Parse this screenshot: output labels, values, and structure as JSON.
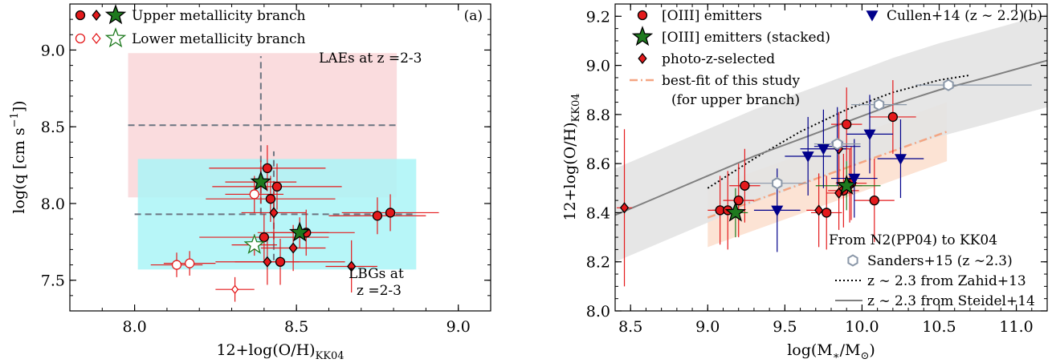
{
  "chart_data": [
    {
      "type": "scatter",
      "panel_label": "(a)",
      "xlabel": "12+log(O/H)",
      "xlabel_sub": "KK04",
      "ylabel": "log(q [cm s",
      "ylabel_sup": "−1",
      "ylabel_end": "])",
      "xlim": [
        7.8,
        9.1
      ],
      "ylim": [
        7.3,
        9.3
      ],
      "xticks": [
        "8.0",
        "8.5",
        "9.0"
      ],
      "yticks": [
        "7.5",
        "8.0",
        "8.5",
        "9.0"
      ],
      "legend": {
        "placement": "top-left",
        "entries": [
          "Upper metallicity branch",
          "Lower metallicity branch"
        ]
      },
      "regions": [
        {
          "name": "LAEs",
          "label": "LAEs at z =2-3",
          "color": "#f9d6d8",
          "x": [
            7.98,
            8.81
          ],
          "y": [
            8.04,
            8.98
          ],
          "cross": {
            "x": 8.39,
            "y": 8.51,
            "xerr": [
              7.98,
              8.81
            ],
            "yerr": [
              7.93,
              8.96
            ]
          }
        },
        {
          "name": "LBGs",
          "label_line1": "LBGs at",
          "label_line2": "z =2-3",
          "color": "#aaf4f7",
          "x": [
            8.01,
            8.87
          ],
          "y": [
            7.57,
            8.29
          ],
          "cross": {
            "x": 8.43,
            "y": 7.93,
            "xerr": [
              8.0,
              8.87
            ],
            "yerr": [
              7.63,
              8.34
            ]
          }
        }
      ],
      "series": [
        {
          "marker": "circle",
          "filled": true,
          "points": [
            {
              "x": 8.41,
              "y": 8.23,
              "xerr": [
                8.23,
                8.59
              ],
              "yerr": [
                8.08,
                8.38
              ]
            },
            {
              "x": 8.42,
              "y": 8.03,
              "xerr": [
                8.22,
                8.62
              ],
              "yerr": [
                7.88,
                8.18
              ]
            },
            {
              "x": 8.44,
              "y": 8.11,
              "xerr": [
                8.24,
                8.64
              ],
              "yerr": [
                7.96,
                8.26
              ]
            },
            {
              "x": 8.4,
              "y": 7.78,
              "xerr": [
                8.2,
                8.6
              ],
              "yerr": [
                7.63,
                7.93
              ]
            },
            {
              "x": 8.45,
              "y": 7.62,
              "xerr": [
                8.25,
                8.65
              ],
              "yerr": [
                7.47,
                7.77
              ]
            },
            {
              "x": 8.53,
              "y": 7.81,
              "xerr": [
                8.38,
                8.68
              ],
              "yerr": [
                7.66,
                7.96
              ]
            },
            {
              "x": 8.75,
              "y": 7.92,
              "xerr": [
                8.6,
                8.9
              ],
              "yerr": [
                7.8,
                8.04
              ]
            },
            {
              "x": 8.79,
              "y": 7.94,
              "xerr": [
                8.64,
                8.94
              ],
              "yerr": [
                7.82,
                8.06
              ]
            }
          ]
        },
        {
          "marker": "diamond",
          "filled": true,
          "points": [
            {
              "x": 8.43,
              "y": 7.94,
              "xerr": [
                8.33,
                8.53
              ],
              "yerr": [
                7.74,
                8.14
              ]
            },
            {
              "x": 8.41,
              "y": 7.62,
              "xerr": [
                8.31,
                8.51
              ],
              "yerr": [
                7.47,
                7.77
              ]
            },
            {
              "x": 8.49,
              "y": 7.71,
              "xerr": [
                8.39,
                8.59
              ],
              "yerr": [
                7.56,
                7.86
              ]
            },
            {
              "x": 8.67,
              "y": 7.59,
              "xerr": [
                8.59,
                8.75
              ],
              "yerr": [
                7.42,
                7.76
              ]
            }
          ]
        },
        {
          "marker": "star",
          "filled": true,
          "points": [
            {
              "x": 8.39,
              "y": 8.14,
              "xerr": [
                8.28,
                8.5
              ],
              "yerr": [
                8.0,
                8.28
              ]
            },
            {
              "x": 8.51,
              "y": 7.81,
              "xerr": [
                8.42,
                8.6
              ],
              "yerr": [
                7.71,
                7.91
              ]
            }
          ]
        },
        {
          "marker": "circle",
          "filled": false,
          "points": [
            {
              "x": 8.37,
              "y": 8.06,
              "xerr": [
                8.28,
                8.46
              ],
              "yerr": [
                7.94,
                8.18
              ]
            },
            {
              "x": 8.13,
              "y": 7.6,
              "xerr": [
                8.05,
                8.21
              ],
              "yerr": [
                7.52,
                7.68
              ]
            },
            {
              "x": 8.17,
              "y": 7.61,
              "xerr": [
                8.09,
                8.25
              ],
              "yerr": [
                7.53,
                7.69
              ]
            }
          ]
        },
        {
          "marker": "diamond",
          "filled": false,
          "points": [
            {
              "x": 8.31,
              "y": 7.44,
              "xerr": [
                8.25,
                8.37
              ],
              "yerr": [
                7.36,
                7.52
              ]
            }
          ]
        },
        {
          "marker": "star",
          "filled": false,
          "points": [
            {
              "x": 8.37,
              "y": 7.73,
              "xerr": [
                8.3,
                8.44
              ],
              "yerr": [
                7.66,
                7.8
              ]
            }
          ]
        }
      ]
    },
    {
      "type": "scatter",
      "panel_label": "(b)",
      "xlabel": "log(M",
      "xlabel_sub": "∗",
      "xlabel_mid": "/M",
      "xlabel_sub2": "⊙",
      "xlabel_end": ")",
      "ylabel": "12+log(O/H)",
      "ylabel_sub": "KK04",
      "xlim": [
        8.4,
        11.2
      ],
      "ylim": [
        8.0,
        9.25
      ],
      "xticks": [
        "8.5",
        "9.0",
        "9.5",
        "10.0",
        "10.5",
        "11.0"
      ],
      "yticks": [
        "8.0",
        "8.2",
        "8.4",
        "8.6",
        "8.8",
        "9.0",
        "9.2"
      ],
      "legend": {
        "placement": "top",
        "entries": [
          "[OIII] emitters",
          "[OIII] emitters (stacked)",
          "photo-z-selected",
          "best-fit of this study",
          "(for upper branch)",
          "Cullen+14 (z ∼ 2.2)"
        ]
      },
      "note_title": "From N2(PP04) to KK04",
      "note_entries": [
        "Sanders+15 (z ∼2.3)",
        "z ∼ 2.3 from Zahid+13",
        "z ∼ 2.3 from Steidel+14"
      ],
      "series": [
        {
          "name": "[OIII] emitters",
          "marker": "circle",
          "color": "#e41a1c",
          "points": [
            {
              "x": 9.08,
              "y": 8.41,
              "xerr": [
                9.0,
                9.16
              ],
              "yerr": [
                8.27,
                8.55
              ]
            },
            {
              "x": 9.13,
              "y": 8.41,
              "xerr": [
                9.03,
                9.23
              ],
              "yerr": [
                8.25,
                8.57
              ]
            },
            {
              "x": 9.2,
              "y": 8.45,
              "xerr": [
                9.1,
                9.3
              ],
              "yerr": [
                8.3,
                8.6
              ]
            },
            {
              "x": 9.24,
              "y": 8.51,
              "xerr": [
                9.14,
                9.34
              ],
              "yerr": [
                8.36,
                8.66
              ]
            },
            {
              "x": 9.77,
              "y": 8.4,
              "xerr": [
                9.67,
                9.87
              ],
              "yerr": [
                8.25,
                8.55
              ]
            },
            {
              "x": 9.88,
              "y": 8.49,
              "xerr": [
                9.78,
                9.98
              ],
              "yerr": [
                8.34,
                8.64
              ]
            },
            {
              "x": 9.9,
              "y": 8.76,
              "xerr": [
                9.8,
                10.0
              ],
              "yerr": [
                8.61,
                8.91
              ]
            },
            {
              "x": 9.93,
              "y": 8.52,
              "xerr": [
                9.83,
                10.03
              ],
              "yerr": [
                8.37,
                8.67
              ]
            },
            {
              "x": 10.08,
              "y": 8.45,
              "xerr": [
                9.95,
                10.21
              ],
              "yerr": [
                8.28,
                8.62
              ]
            },
            {
              "x": 10.2,
              "y": 8.79,
              "xerr": [
                10.05,
                10.35
              ],
              "yerr": [
                8.64,
                8.94
              ]
            }
          ]
        },
        {
          "name": "photo-z-selected",
          "marker": "diamond",
          "color": "#e41a1c",
          "points": [
            {
              "x": 8.46,
              "y": 8.42,
              "xerr": [
                8.41,
                8.51
              ],
              "yerr": [
                8.1,
                8.74
              ]
            },
            {
              "x": 9.72,
              "y": 8.41,
              "xerr": [
                9.64,
                9.8
              ],
              "yerr": [
                8.26,
                8.56
              ]
            },
            {
              "x": 9.85,
              "y": 8.48,
              "xerr": [
                9.77,
                9.93
              ],
              "yerr": [
                8.33,
                8.63
              ]
            },
            {
              "x": 9.85,
              "y": 8.66,
              "xerr": [
                9.77,
                9.93
              ],
              "yerr": [
                8.51,
                8.81
              ]
            },
            {
              "x": 9.92,
              "y": 8.51,
              "xerr": [
                9.84,
                10.0
              ],
              "yerr": [
                8.36,
                8.66
              ]
            }
          ]
        },
        {
          "name": "[OIII] emitters (stacked)",
          "marker": "star",
          "color": "#1e7a1e",
          "points": [
            {
              "x": 9.18,
              "y": 8.4,
              "xerr": [
                9.1,
                9.26
              ],
              "yerr": [
                8.3,
                8.5
              ]
            },
            {
              "x": 9.9,
              "y": 8.51,
              "xerr": [
                9.7,
                10.12
              ],
              "yerr": [
                8.41,
                8.61
              ]
            }
          ]
        },
        {
          "name": "Cullen+14 (z ∼ 2.2)",
          "marker": "triangle-down",
          "color": "#00008b",
          "points": [
            {
              "x": 9.45,
              "y": 8.41,
              "xerr": [
                9.3,
                9.6
              ],
              "yerr": [
                8.24,
                8.58
              ]
            },
            {
              "x": 9.65,
              "y": 8.63,
              "xerr": [
                9.5,
                9.8
              ],
              "yerr": [
                8.47,
                8.79
              ]
            },
            {
              "x": 9.75,
              "y": 8.66,
              "xerr": [
                9.6,
                9.9
              ],
              "yerr": [
                8.5,
                8.82
              ]
            },
            {
              "x": 9.84,
              "y": 8.67,
              "xerr": [
                9.69,
                9.99
              ],
              "yerr": [
                8.51,
                8.83
              ]
            },
            {
              "x": 9.95,
              "y": 8.54,
              "xerr": [
                9.8,
                10.1
              ],
              "yerr": [
                8.38,
                8.7
              ]
            },
            {
              "x": 10.05,
              "y": 8.72,
              "xerr": [
                9.9,
                10.2
              ],
              "yerr": [
                8.56,
                8.88
              ]
            },
            {
              "x": 10.25,
              "y": 8.62,
              "xerr": [
                10.1,
                10.4
              ],
              "yerr": [
                8.46,
                8.78
              ]
            }
          ]
        },
        {
          "name": "Sanders+15 (z ∼2.3)",
          "marker": "hexagon-open",
          "color": "#8a97a8",
          "points": [
            {
              "x": 9.45,
              "y": 8.52,
              "xerr": [
                9.25,
                9.65
              ]
            },
            {
              "x": 9.84,
              "y": 8.68,
              "xerr": [
                9.69,
                9.99
              ]
            },
            {
              "x": 10.11,
              "y": 8.84,
              "xerr": [
                9.93,
                10.29
              ]
            },
            {
              "x": 10.56,
              "y": 8.92,
              "xerr": [
                10.35,
                11.1
              ]
            }
          ]
        }
      ],
      "lines": [
        {
          "name": "best-fit of this study",
          "style": "dash-dot",
          "color": "#f4a582",
          "x": [
            9.0,
            10.55
          ],
          "y": [
            8.38,
            8.73
          ],
          "band_halfwidth": 0.12
        },
        {
          "name": "z ∼ 2.3 from Zahid+13",
          "style": "dotted",
          "color": "#000000",
          "x": [
            9.0,
            9.3,
            9.6,
            9.9,
            10.2,
            10.5,
            10.7
          ],
          "y": [
            8.5,
            8.62,
            8.73,
            8.82,
            8.89,
            8.94,
            8.96
          ]
        },
        {
          "name": "z ∼ 2.3 from Steidel+14",
          "style": "solid",
          "color": "#808080",
          "x": [
            8.4,
            8.7,
            9.0,
            9.3,
            9.6,
            9.9,
            10.2,
            10.5,
            10.8,
            11.2
          ],
          "y": [
            8.39,
            8.47,
            8.55,
            8.63,
            8.7,
            8.77,
            8.84,
            8.9,
            8.95,
            9.02
          ],
          "band_halfwidth": 0.19
        }
      ]
    }
  ]
}
